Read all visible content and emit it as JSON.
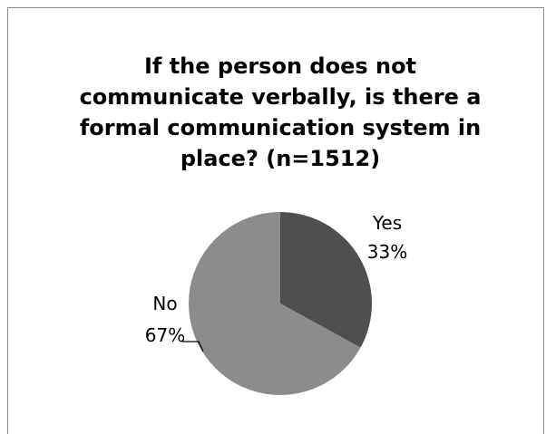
{
  "chart_data": {
    "type": "pie",
    "title": "If the person does not communicate verbally, is there a formal communication system in place?  (n=1512)",
    "title_lines": [
      "If the person does not",
      "communicate verbally, is there a",
      "formal communication system in",
      "place?  (n=1512)"
    ],
    "categories": [
      "Yes",
      "No"
    ],
    "values": [
      33,
      67
    ],
    "value_labels": [
      "33%",
      "67%"
    ],
    "colors": [
      "#4f4f4f",
      "#8c8c8c"
    ],
    "start_angle_deg": 0,
    "direction": "clockwise",
    "legend": "none"
  }
}
